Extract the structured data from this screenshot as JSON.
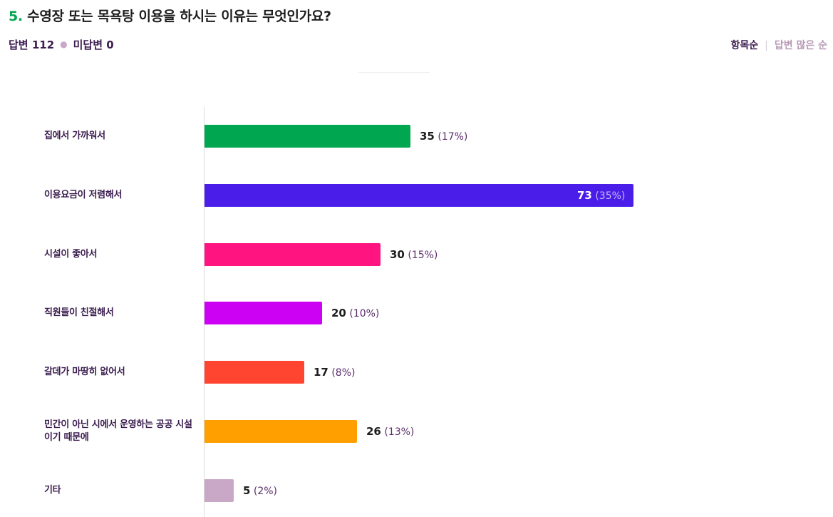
{
  "question": {
    "number": "5.",
    "title": "수영장 또는 목욕탕 이용을 하시는 이유는 무엇인가요?"
  },
  "meta": {
    "answered": "답변 112",
    "unanswered": "미답변 0"
  },
  "sort": {
    "by_item": "항목순",
    "by_count": "답변 많은 순"
  },
  "chart_data": {
    "type": "bar",
    "orientation": "horizontal",
    "categories": [
      "집에서 가까워서",
      "이용요금이 저렴해서",
      "시설이 좋아서",
      "직원들이 친절해서",
      "갈데가 마땅히 없어서",
      "민간이 아닌 시에서 운영하는 공공 시설이기 때문에",
      "기타"
    ],
    "values": [
      35,
      73,
      30,
      20,
      17,
      26,
      5
    ],
    "percents": [
      "(17%)",
      "(35%)",
      "(15%)",
      "(10%)",
      "(8%)",
      "(13%)",
      "(2%)"
    ],
    "colors": [
      "#00a650",
      "#4a1de8",
      "#ff1480",
      "#cc00f2",
      "#ff4530",
      "#ffa000",
      "#c8a8c6"
    ],
    "xlim": [
      0,
      73
    ],
    "grid": false,
    "legend": "none"
  }
}
